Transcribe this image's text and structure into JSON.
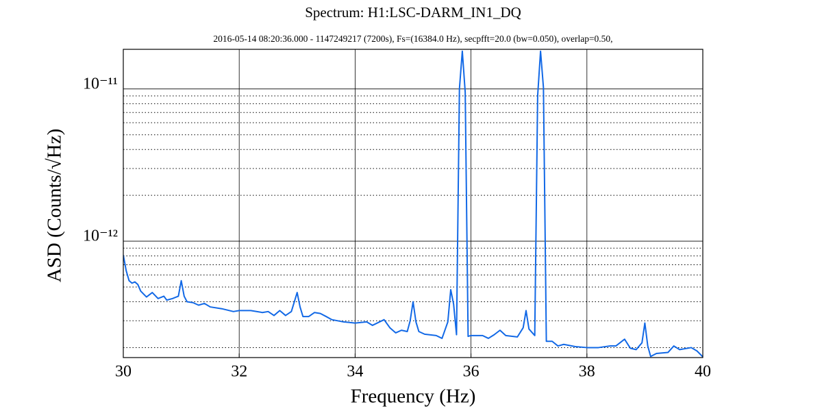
{
  "chart_data": {
    "type": "line",
    "title": "Spectrum: H1:LSC-DARM_IN1_DQ",
    "subtitle": "2016-05-14 08:20:36.000 - 1147249217 (7200s), Fs=(16384.0 Hz), secpfft=20.0 (bw=0.050), overlap=0.50,",
    "xlabel": "Frequency (Hz)",
    "ylabel": "ASD (Counts/√Hz)",
    "yscale": "log",
    "grid": true,
    "color": "#1168e6",
    "xlim": [
      30,
      40
    ],
    "xticks": [
      30,
      32,
      34,
      36,
      38,
      40
    ],
    "ylim": [
      1.72e-13,
      1.82e-11
    ],
    "yticks": [
      {
        "value": 1e-12,
        "label": "10⁻¹²"
      },
      {
        "value": 1e-11,
        "label": "10⁻¹¹"
      }
    ],
    "yminorticks": [
      2e-13,
      3e-13,
      4e-13,
      5e-13,
      6e-13,
      7e-13,
      8e-13,
      9e-13,
      2e-12,
      3e-12,
      4e-12,
      5e-12,
      6e-12,
      7e-12,
      8e-12,
      9e-12
    ],
    "x": [
      30,
      30.05,
      30.1,
      30.15,
      30.2,
      30.25,
      30.3,
      30.4,
      30.5,
      30.6,
      30.7,
      30.75,
      30.85,
      30.95,
      31.0,
      31.05,
      31.1,
      31.2,
      31.3,
      31.4,
      31.5,
      31.7,
      31.9,
      32.0,
      32.2,
      32.4,
      32.5,
      32.6,
      32.7,
      32.8,
      32.9,
      33.0,
      33.05,
      33.1,
      33.2,
      33.3,
      33.4,
      33.5,
      33.6,
      33.8,
      34.0,
      34.2,
      34.3,
      34.5,
      34.6,
      34.7,
      34.8,
      34.9,
      34.95,
      35.0,
      35.05,
      35.1,
      35.2,
      35.4,
      35.5,
      35.6,
      35.65,
      35.7,
      35.75,
      35.8,
      35.85,
      35.9,
      35.95,
      36.0,
      36.2,
      36.3,
      36.4,
      36.5,
      36.6,
      36.8,
      36.9,
      36.95,
      37.0,
      37.1,
      37.15,
      37.2,
      37.25,
      37.3,
      37.4,
      37.5,
      37.6,
      37.8,
      38.0,
      38.2,
      38.4,
      38.5,
      38.65,
      38.75,
      38.85,
      38.95,
      39.0,
      39.05,
      39.1,
      39.2,
      39.4,
      39.5,
      39.6,
      39.8,
      39.9,
      40
    ],
    "values": [
      8.1e-13,
      6.4e-13,
      5.5e-13,
      5.3e-13,
      5.4e-13,
      5.2e-13,
      4.7e-13,
      4.3e-13,
      4.6e-13,
      4.2e-13,
      4.35e-13,
      4.1e-13,
      4.2e-13,
      4.35e-13,
      5.5e-13,
      4.35e-13,
      4e-13,
      3.95e-13,
      3.8e-13,
      3.9e-13,
      3.7e-13,
      3.6e-13,
      3.45e-13,
      3.5e-13,
      3.5e-13,
      3.4e-13,
      3.45e-13,
      3.25e-13,
      3.5e-13,
      3.25e-13,
      3.45e-13,
      4.6e-13,
      3.7e-13,
      3.2e-13,
      3.2e-13,
      3.4e-13,
      3.35e-13,
      3.2e-13,
      3.05e-13,
      2.95e-13,
      2.9e-13,
      2.95e-13,
      2.8e-13,
      3.05e-13,
      2.7e-13,
      2.5e-13,
      2.6e-13,
      2.55e-13,
      3e-13,
      4e-13,
      2.95e-13,
      2.55e-13,
      2.45e-13,
      2.4e-13,
      2.3e-13,
      2.95e-13,
      4.8e-13,
      3.85e-13,
      2.43e-13,
      1e-11,
      1.77e-11,
      9.5e-12,
      2.37e-13,
      2.4e-13,
      2.4e-13,
      2.3e-13,
      2.43e-13,
      2.6e-13,
      2.4e-13,
      2.35e-13,
      2.7e-13,
      3.5e-13,
      2.65e-13,
      2.4e-13,
      9e-12,
      1.77e-11,
      1.02e-11,
      2.2e-13,
      2.2e-13,
      2.05e-13,
      2.1e-13,
      2.03e-13,
      2e-13,
      2e-13,
      2.05e-13,
      2.05e-13,
      2.27e-13,
      1.98e-13,
      1.94e-13,
      2.15e-13,
      2.9e-13,
      2.05e-13,
      1.75e-13,
      1.83e-13,
      1.86e-13,
      2.05e-13,
      1.94e-13,
      2e-13,
      1.9e-13,
      1.74e-13
    ]
  }
}
